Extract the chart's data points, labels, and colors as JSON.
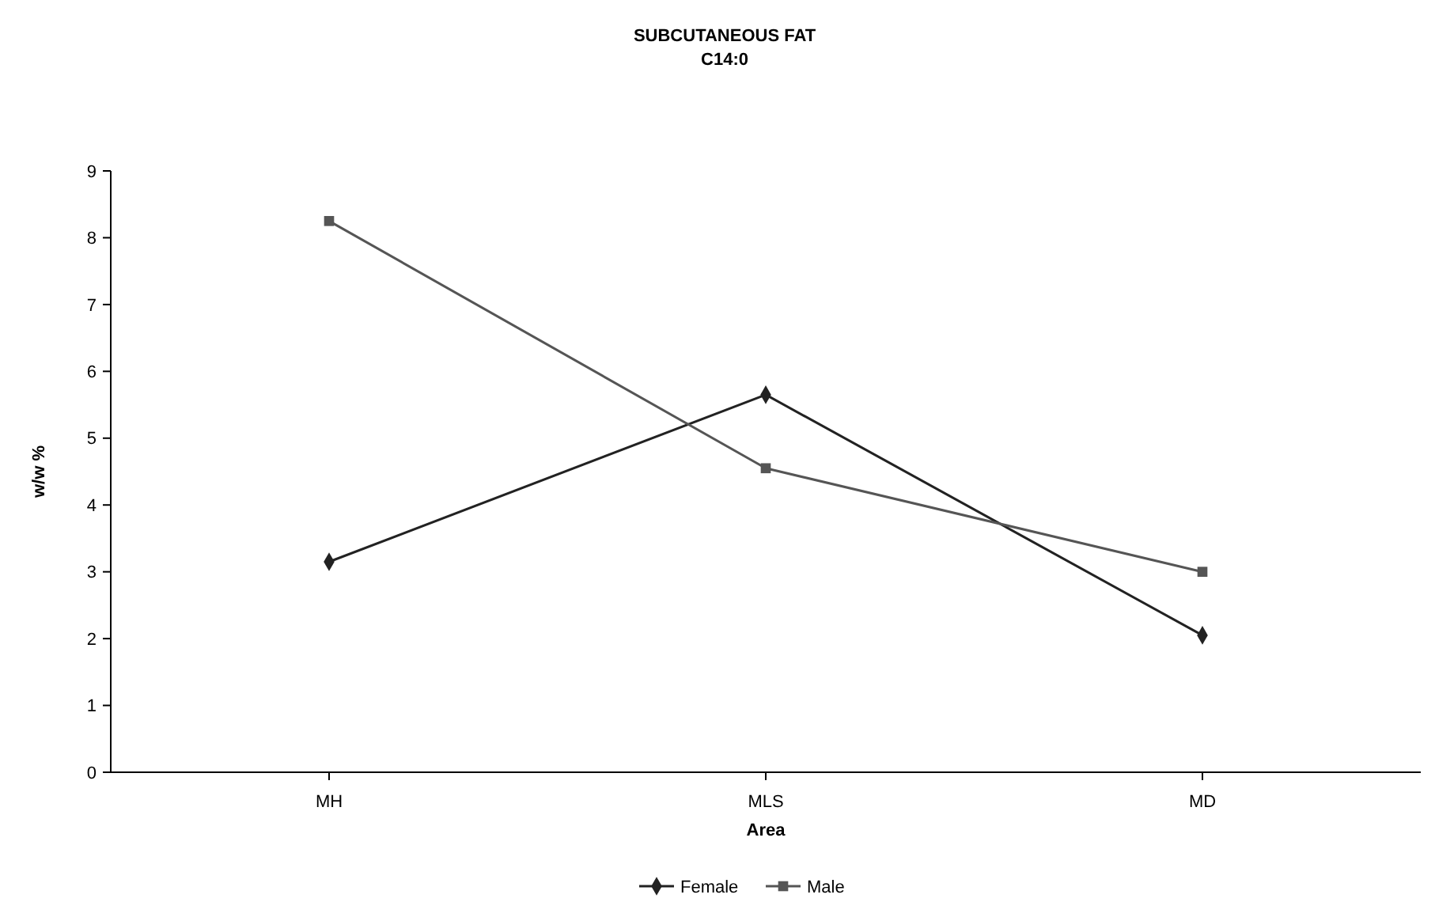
{
  "chart_data": {
    "type": "line",
    "title": "SUBCUTANEOUS FAT",
    "subtitle": "C14:0",
    "xlabel": "Area",
    "ylabel": "w/w %",
    "categories": [
      "MH",
      "MLS",
      "MD"
    ],
    "series": [
      {
        "name": "Female",
        "color": "#222222",
        "marker": "diamond",
        "values": [
          3.15,
          5.65,
          2.05
        ]
      },
      {
        "name": "Male",
        "color": "#555555",
        "marker": "square",
        "values": [
          8.25,
          4.55,
          3.0
        ]
      }
    ],
    "ylim": [
      0,
      9
    ],
    "yticks": [
      0,
      1,
      2,
      3,
      4,
      5,
      6,
      7,
      8,
      9
    ],
    "grid": false,
    "legend": "bottom",
    "line_style": "solid"
  }
}
